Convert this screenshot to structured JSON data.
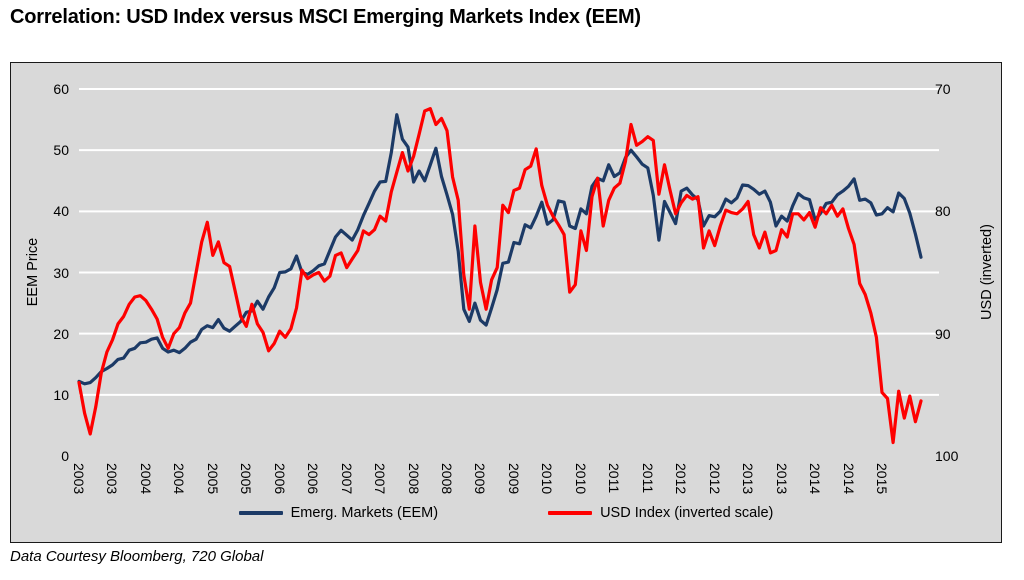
{
  "title": "Correlation: USD Index versus MSCI Emerging Markets Index (EEM)",
  "footer": "Data Courtesy Bloomberg, 720 Global",
  "chart_data": {
    "type": "line",
    "title": "Correlation: USD Index versus MSCI Emerging Markets Index (EEM)",
    "frequency": "monthly",
    "x_start": "2003",
    "x_end": "2015",
    "grid": "horizontal-white-lines",
    "plot_bg": "#d9d9d9",
    "legend_position": "bottom",
    "x_tick_labels": [
      "2003",
      "2003",
      "2004",
      "2004",
      "2005",
      "2005",
      "2006",
      "2006",
      "2007",
      "2007",
      "2008",
      "2008",
      "2009",
      "2009",
      "2010",
      "2010",
      "2011",
      "2011",
      "2012",
      "2012",
      "2013",
      "2013",
      "2014",
      "2014",
      "2015"
    ],
    "left_axis": {
      "label": "EEM Price",
      "min": 0,
      "max": 60,
      "ticks": [
        0,
        10,
        20,
        30,
        40,
        50,
        60
      ],
      "gridline_ticks": [
        10,
        20,
        30,
        40,
        50,
        60
      ]
    },
    "right_axis": {
      "label": "USD (inverted)",
      "min": 70,
      "max": 100,
      "inverted": true,
      "ticks": [
        70,
        80,
        90,
        100
      ]
    },
    "series": [
      {
        "name": "Emerg. Markets (EEM)",
        "axis": "left",
        "color": "#1c3a66",
        "values": [
          12.2,
          11.8,
          12.0,
          12.8,
          13.8,
          14.3,
          14.9,
          15.8,
          16.0,
          17.3,
          17.6,
          18.5,
          18.6,
          19.1,
          19.3,
          17.6,
          17.0,
          17.3,
          16.9,
          17.6,
          18.6,
          19.1,
          20.7,
          21.3,
          21.0,
          22.3,
          20.9,
          20.4,
          21.2,
          22.0,
          23.5,
          23.7,
          25.3,
          24.0,
          26.0,
          27.5,
          30.0,
          30.1,
          30.6,
          32.7,
          30.0,
          29.7,
          30.3,
          31.1,
          31.4,
          33.6,
          35.8,
          36.9,
          36.1,
          35.3,
          37.0,
          39.3,
          41.3,
          43.3,
          44.8,
          44.9,
          49.6,
          55.8,
          51.8,
          50.5,
          44.8,
          46.6,
          45.0,
          47.6,
          50.3,
          45.7,
          42.7,
          39.5,
          33.5,
          24.0,
          22.0,
          25.0,
          22.2,
          21.4,
          24.2,
          27.2,
          31.5,
          31.7,
          34.9,
          34.7,
          37.8,
          37.3,
          39.2,
          41.5,
          37.9,
          38.6,
          41.7,
          41.5,
          37.6,
          37.2,
          40.4,
          39.6,
          44.1,
          45.4,
          45.0,
          47.6,
          45.7,
          46.3,
          48.8,
          50.0,
          48.9,
          47.7,
          47.1,
          42.6,
          35.3,
          41.6,
          39.8,
          38.0,
          43.3,
          43.8,
          42.7,
          41.9,
          37.6,
          39.3,
          39.1,
          40.0,
          42.0,
          41.4,
          42.2,
          44.3,
          44.2,
          43.6,
          42.8,
          43.3,
          41.5,
          37.6,
          39.2,
          38.4,
          40.9,
          42.9,
          42.2,
          41.9,
          38.6,
          39.7,
          41.3,
          41.5,
          42.7,
          43.3,
          44.1,
          45.3,
          41.8,
          42.0,
          41.4,
          39.4,
          39.6,
          40.6,
          39.9,
          43.0,
          42.1,
          39.7,
          36.3,
          32.5
        ]
      },
      {
        "name": "USD Index (inverted scale)",
        "axis": "right",
        "color": "#fe0000",
        "values": [
          94.0,
          96.5,
          98.2,
          96.0,
          93.2,
          91.5,
          90.5,
          89.2,
          88.6,
          87.6,
          87.0,
          86.9,
          87.3,
          88.0,
          88.8,
          90.3,
          91.2,
          90.0,
          89.5,
          88.3,
          87.5,
          85.0,
          82.5,
          80.9,
          83.6,
          82.5,
          84.2,
          84.5,
          86.5,
          88.6,
          89.4,
          87.6,
          89.2,
          89.9,
          91.4,
          90.8,
          89.8,
          90.3,
          89.6,
          87.9,
          84.8,
          85.5,
          85.2,
          85.0,
          85.7,
          85.3,
          83.6,
          83.4,
          84.6,
          83.9,
          83.2,
          81.6,
          81.9,
          81.5,
          80.4,
          80.8,
          78.4,
          76.8,
          75.2,
          76.7,
          75.5,
          73.7,
          71.8,
          71.6,
          72.9,
          72.4,
          73.4,
          77.2,
          79.1,
          85.2,
          88.0,
          81.2,
          85.8,
          88.0,
          85.6,
          84.6,
          79.5,
          80.1,
          78.3,
          78.1,
          76.6,
          76.3,
          74.9,
          77.9,
          79.5,
          80.4,
          81.1,
          81.9,
          86.6,
          86.0,
          81.6,
          83.2,
          78.8,
          77.3,
          81.2,
          79.1,
          78.1,
          77.7,
          75.9,
          72.9,
          74.6,
          74.3,
          73.9,
          74.2,
          78.6,
          76.2,
          78.3,
          80.2,
          79.3,
          78.7,
          79.0,
          78.8,
          83.0,
          81.6,
          82.8,
          81.2,
          79.9,
          80.1,
          80.2,
          79.8,
          79.2,
          81.9,
          83.0,
          81.7,
          83.4,
          83.2,
          81.5,
          82.1,
          80.2,
          80.2,
          80.7,
          80.1,
          81.3,
          79.7,
          80.2,
          79.5,
          80.4,
          79.8,
          81.4,
          82.7,
          85.9,
          86.8,
          88.3,
          90.3,
          94.8,
          95.3,
          98.9,
          94.7,
          96.9,
          95.1,
          97.2,
          95.5
        ]
      }
    ]
  }
}
